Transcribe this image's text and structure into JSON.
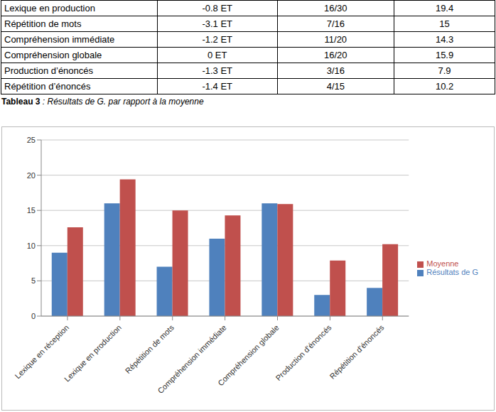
{
  "table": {
    "rows": [
      [
        "Lexique en production",
        "-0.8 ET",
        "16/30",
        "19.4"
      ],
      [
        "Répétition de mots",
        "-3.1 ET",
        "7/16",
        "15"
      ],
      [
        "Compréhension immédiate",
        "-1.2 ET",
        "11/20",
        "14.3"
      ],
      [
        "Compréhension globale",
        "0 ET",
        "16/20",
        "15.9"
      ],
      [
        "Production d’énoncés",
        "-1.3 ET",
        "3/16",
        "7.9"
      ],
      [
        "Répétition d’énoncés",
        "-1.4 ET",
        "4/15",
        "10.2"
      ]
    ]
  },
  "caption": {
    "label": "Tableau 3",
    "text": ": Résultats de G. par rapport à la moyenne"
  },
  "chart_data": {
    "type": "bar",
    "categories": [
      "Lexique en réception",
      "Lexique en production",
      "Répétition de mots",
      "Compréhension immédiate",
      "Compréhension globale",
      "Production d’énoncés",
      "Répétition d’énoncés"
    ],
    "series": [
      {
        "name": "Résultats de G",
        "color": "#4f81bd",
        "values": [
          9,
          16,
          7,
          11,
          16,
          3,
          4
        ]
      },
      {
        "name": "Moyenne",
        "color": "#c0504d",
        "values": [
          12.6,
          19.4,
          15,
          14.3,
          15.9,
          7.9,
          10.2
        ]
      }
    ],
    "ylim": [
      0,
      25
    ],
    "yticks": [
      0,
      5,
      10,
      15,
      20,
      25
    ],
    "grid": true,
    "legend": "right"
  }
}
